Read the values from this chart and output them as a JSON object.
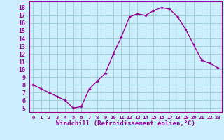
{
  "x": [
    0,
    1,
    2,
    3,
    4,
    5,
    6,
    7,
    8,
    9,
    10,
    11,
    12,
    13,
    14,
    15,
    16,
    17,
    18,
    19,
    20,
    21,
    22,
    23
  ],
  "y": [
    8.0,
    7.5,
    7.0,
    6.5,
    6.0,
    5.0,
    5.2,
    7.5,
    8.5,
    9.5,
    12.0,
    14.2,
    16.8,
    17.2,
    17.0,
    17.6,
    18.0,
    17.8,
    16.8,
    15.2,
    13.2,
    11.2,
    10.8,
    10.2
  ],
  "line_color": "#990099",
  "marker": "D",
  "marker_size": 1.8,
  "bg_color": "#cceeff",
  "grid_color": "#99cccc",
  "xlabel": "Windchill (Refroidissement éolien,°C)",
  "xlabel_color": "#990099",
  "tick_color": "#990099",
  "ylim": [
    4.5,
    18.8
  ],
  "xlim": [
    -0.5,
    23.5
  ],
  "yticks": [
    5,
    6,
    7,
    8,
    9,
    10,
    11,
    12,
    13,
    14,
    15,
    16,
    17,
    18
  ],
  "xticks": [
    0,
    1,
    2,
    3,
    4,
    5,
    6,
    7,
    8,
    9,
    10,
    11,
    12,
    13,
    14,
    15,
    16,
    17,
    18,
    19,
    20,
    21,
    22,
    23
  ],
  "linewidth": 1.0,
  "xlabel_fontsize": 6.5,
  "ytick_fontsize": 6.0,
  "xtick_fontsize": 5.2
}
